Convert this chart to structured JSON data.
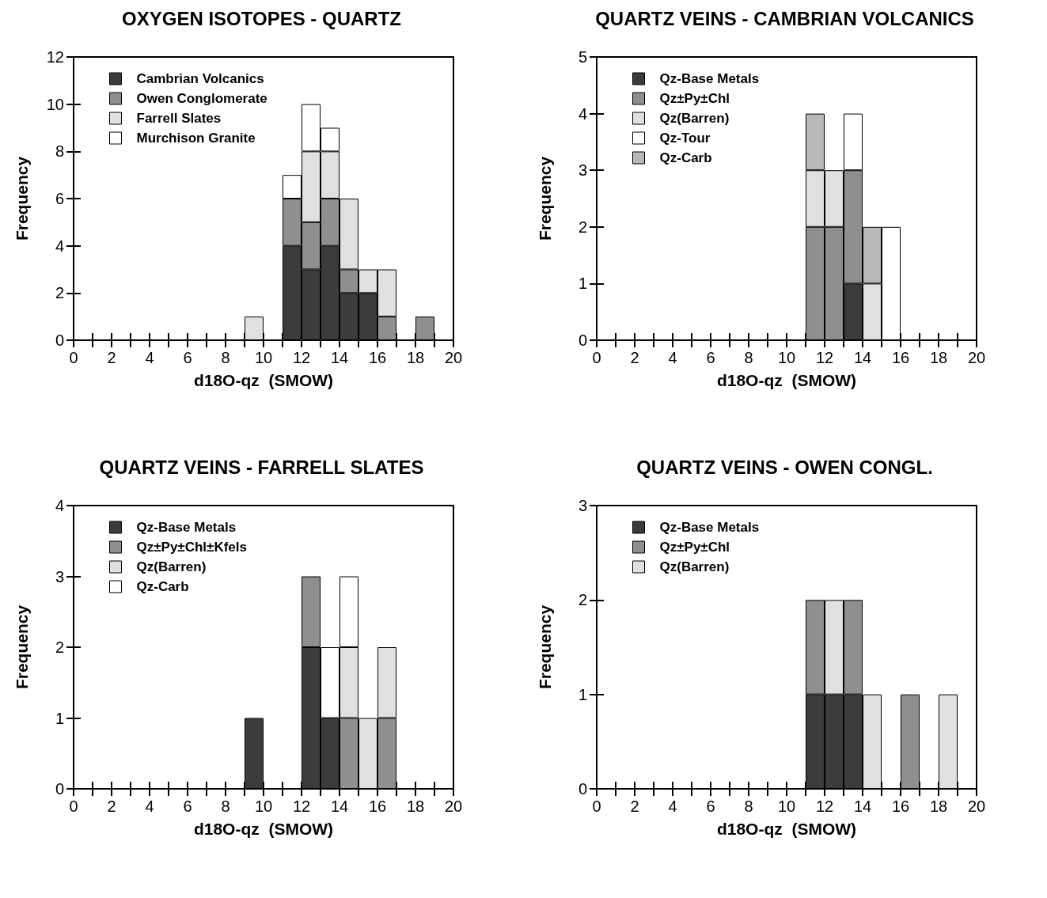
{
  "chart_data": [
    {
      "type": "bar",
      "title": "OXYGEN ISOTOPES - QUARTZ",
      "xlabel": "d18O-qz  (SMOW)",
      "ylabel": "Frequency",
      "x": [
        9.5,
        10.5,
        11.5,
        12.5,
        13.5,
        14.5,
        15.5,
        16.5,
        17.5,
        18.5
      ],
      "stacked": true,
      "legend": "top left",
      "grid": false,
      "series": [
        {
          "name": "Cambrian Volcanics",
          "color": "#3c3c3c",
          "values": [
            0,
            0,
            4,
            3,
            4,
            2,
            2,
            0,
            0,
            0
          ]
        },
        {
          "name": "Owen Conglomerate",
          "color": "#8f8f8f",
          "values": [
            0,
            0,
            2,
            2,
            2,
            1,
            0,
            1,
            0,
            1
          ]
        },
        {
          "name": "Farrell Slates",
          "color": "#e0e0e0",
          "values": [
            1,
            0,
            0,
            3,
            2,
            3,
            1,
            2,
            0,
            0
          ]
        },
        {
          "name": "Murchison Granite",
          "color": "#ffffff",
          "values": [
            0,
            0,
            1,
            2,
            1,
            0,
            0,
            0,
            0,
            0
          ]
        }
      ],
      "xlim": [
        0,
        20
      ],
      "xticks": [
        0,
        {
          "value": 1,
          "label": null
        },
        2,
        {
          "value": 3,
          "label": null
        },
        4,
        {
          "value": 5,
          "label": null
        },
        6,
        {
          "value": 7,
          "label": null
        },
        8,
        {
          "value": 9,
          "label": null
        },
        10,
        {
          "value": 11,
          "label": null
        },
        12,
        {
          "value": 13,
          "label": null
        },
        14,
        {
          "value": 15,
          "label": null
        },
        16,
        {
          "value": 17,
          "label": null
        },
        18,
        {
          "value": 19,
          "label": null
        },
        20
      ],
      "ylim": [
        0,
        12
      ],
      "yticks": [
        0,
        2,
        4,
        6,
        8,
        10,
        12
      ]
    },
    {
      "type": "bar",
      "title": "QUARTZ VEINS - CAMBRIAN VOLCANICS",
      "xlabel": "d18O-qz  (SMOW)",
      "ylabel": "Frequency",
      "x": [
        11.5,
        12.5,
        13.5,
        14.5,
        15.5
      ],
      "stacked": true,
      "legend": "top left",
      "grid": false,
      "series": [
        {
          "name": "Qz-Base Metals",
          "color": "#3c3c3c",
          "values": [
            0,
            0,
            1,
            0,
            0
          ]
        },
        {
          "name": "Qz±Py±Chl",
          "color": "#8f8f8f",
          "values": [
            2,
            2,
            2,
            0,
            0
          ]
        },
        {
          "name": "Qz(Barren)",
          "color": "#e0e0e0",
          "values": [
            1,
            1,
            0,
            1,
            0
          ]
        },
        {
          "name": "Qz-Tour",
          "color": "#ffffff",
          "values": [
            0,
            0,
            1,
            0,
            2
          ]
        },
        {
          "name": "Qz-Carb",
          "color": "#b8b8b8",
          "values": [
            1,
            0,
            0,
            1,
            0
          ]
        }
      ],
      "xlim": [
        0,
        20
      ],
      "xticks": [
        0,
        {
          "value": 1,
          "label": null
        },
        2,
        {
          "value": 3,
          "label": null
        },
        4,
        {
          "value": 5,
          "label": null
        },
        6,
        {
          "value": 7,
          "label": null
        },
        8,
        {
          "value": 9,
          "label": null
        },
        10,
        {
          "value": 11,
          "label": null
        },
        12,
        {
          "value": 13,
          "label": null
        },
        14,
        {
          "value": 15,
          "label": null
        },
        16,
        {
          "value": 17,
          "label": null
        },
        18,
        {
          "value": 19,
          "label": null
        },
        20
      ],
      "ylim": [
        0,
        5
      ],
      "yticks": [
        0,
        1,
        2,
        3,
        4,
        5
      ]
    },
    {
      "type": "bar",
      "title": "QUARTZ VEINS - FARRELL SLATES",
      "xlabel": "d18O-qz  (SMOW)",
      "ylabel": "Frequency",
      "x": [
        9.5,
        10.5,
        11.5,
        12.5,
        13.5,
        14.5,
        15.5,
        16.5
      ],
      "stacked": true,
      "legend": "top left",
      "grid": false,
      "series": [
        {
          "name": "Qz-Base Metals",
          "color": "#3c3c3c",
          "values": [
            1,
            0,
            0,
            2,
            1,
            0,
            0,
            0
          ]
        },
        {
          "name": "Qz±Py±Chl±Kfels",
          "color": "#8f8f8f",
          "values": [
            0,
            0,
            0,
            1,
            0,
            1,
            0,
            1
          ]
        },
        {
          "name": "Qz(Barren)",
          "color": "#e0e0e0",
          "values": [
            0,
            0,
            0,
            0,
            0,
            1,
            1,
            1
          ]
        },
        {
          "name": "Qz-Carb",
          "color": "#ffffff",
          "values": [
            0,
            0,
            0,
            0,
            1,
            1,
            0,
            0
          ]
        }
      ],
      "xlim": [
        0,
        20
      ],
      "xticks": [
        0,
        {
          "value": 1,
          "label": null
        },
        2,
        {
          "value": 3,
          "label": null
        },
        4,
        {
          "value": 5,
          "label": null
        },
        6,
        {
          "value": 7,
          "label": null
        },
        8,
        {
          "value": 9,
          "label": null
        },
        10,
        {
          "value": 11,
          "label": null
        },
        12,
        {
          "value": 13,
          "label": null
        },
        14,
        {
          "value": 15,
          "label": null
        },
        16,
        {
          "value": 17,
          "label": null
        },
        18,
        {
          "value": 19,
          "label": null
        },
        20
      ],
      "ylim": [
        0,
        4
      ],
      "yticks": [
        0,
        1,
        2,
        3,
        4
      ]
    },
    {
      "type": "bar",
      "title": "QUARTZ VEINS - OWEN CONGL.",
      "xlabel": "d18O-qz  (SMOW)",
      "ylabel": "Frequency",
      "x": [
        11.5,
        12.5,
        13.5,
        14.5,
        15.5,
        16.5,
        17.5,
        18.5
      ],
      "stacked": true,
      "legend": "top left",
      "grid": false,
      "series": [
        {
          "name": "Qz-Base Metals",
          "color": "#3c3c3c",
          "values": [
            1,
            1,
            1,
            0,
            0,
            0,
            0,
            0
          ]
        },
        {
          "name": "Qz±Py±Chl",
          "color": "#8f8f8f",
          "values": [
            1,
            0,
            1,
            0,
            0,
            1,
            0,
            0
          ]
        },
        {
          "name": "Qz(Barren)",
          "color": "#e0e0e0",
          "values": [
            0,
            1,
            0,
            1,
            0,
            0,
            0,
            1
          ]
        }
      ],
      "xlim": [
        0,
        20
      ],
      "xticks": [
        0,
        {
          "value": 1,
          "label": null
        },
        2,
        {
          "value": 3,
          "label": null
        },
        4,
        {
          "value": 5,
          "label": null
        },
        6,
        {
          "value": 7,
          "label": null
        },
        8,
        {
          "value": 9,
          "label": null
        },
        10,
        {
          "value": 11,
          "label": null
        },
        12,
        {
          "value": 13,
          "label": null
        },
        14,
        {
          "value": 15,
          "label": null
        },
        16,
        {
          "value": 17,
          "label": null
        },
        18,
        {
          "value": 19,
          "label": null
        },
        20
      ],
      "ylim": [
        0,
        3
      ],
      "yticks": [
        0,
        1,
        2,
        3
      ]
    }
  ]
}
